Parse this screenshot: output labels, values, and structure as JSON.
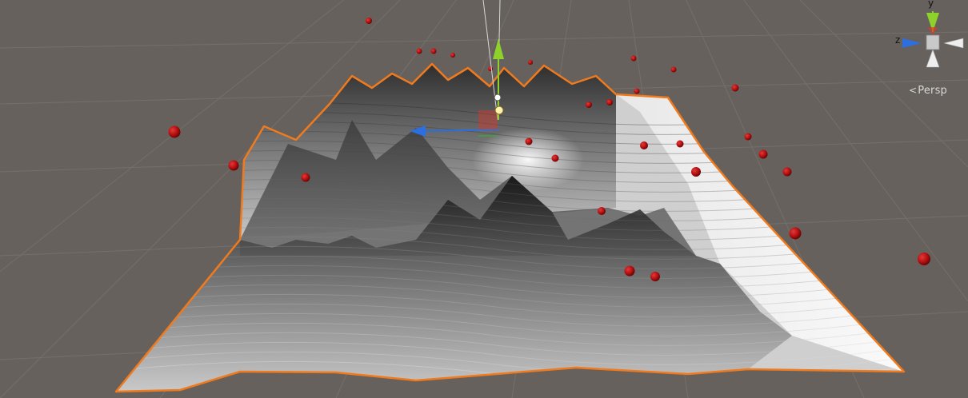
{
  "scene_view": {
    "projection_label": "Persp",
    "gizmo": {
      "y_label": "y",
      "z_label": "z"
    }
  },
  "colors": {
    "background": "#66615c",
    "grid": "#7a7470",
    "selection_outline": "#f07a1e",
    "sphere": "#b30d0d",
    "axis_x": "#d63a2a",
    "axis_y": "#8fd12b",
    "axis_z": "#2b6fe0"
  },
  "icons": [
    "view-gizmo-icon",
    "move-tool-handle-icon",
    "object-pivot-icon"
  ]
}
